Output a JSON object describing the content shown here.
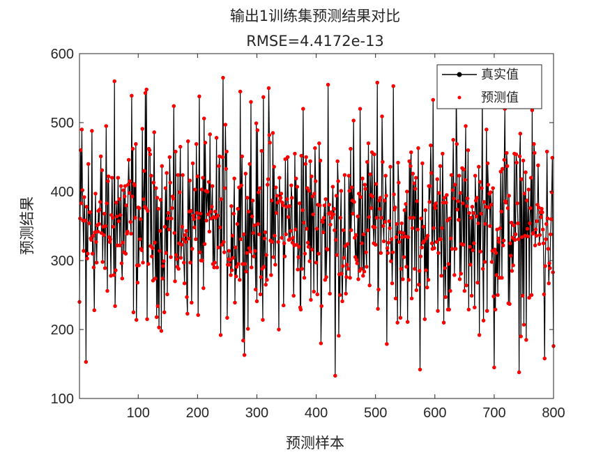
{
  "chart_data": {
    "type": "line",
    "title": "输出1训练集预测结果对比",
    "subtitle": "RMSE=4.4172e-13",
    "xlabel": "预测样本",
    "ylabel": "预测结果",
    "xlim": [
      1,
      800
    ],
    "ylim": [
      100,
      600
    ],
    "xticks": [
      100,
      200,
      300,
      400,
      500,
      600,
      700,
      800
    ],
    "yticks": [
      100,
      200,
      300,
      400,
      500,
      600
    ],
    "grid": false,
    "legend_position": "top-right",
    "n_points": 800,
    "value_range": [
      133,
      565
    ],
    "series": [
      {
        "name": "真实值",
        "style": "line-with-dot-markers",
        "color": "#000000"
      },
      {
        "name": "预测值",
        "style": "dot-markers",
        "color": "#ff0000"
      }
    ],
    "sampled_points": {
      "x": [
        1,
        5,
        12,
        22,
        30,
        45,
        60,
        66,
        89,
        112,
        114,
        134,
        153,
        163,
        203,
        243,
        272,
        290,
        311,
        320,
        338,
        352,
        378,
        405,
        420,
        432,
        474,
        503,
        530,
        575,
        597,
        636,
        680,
        700,
        718,
        742,
        767,
        785,
        800
      ],
      "y": [
        240,
        490,
        153,
        488,
        297,
        350,
        560,
        420,
        539,
        543,
        548,
        375,
        450,
        458,
        538,
        565,
        545,
        530,
        537,
        550,
        420,
        450,
        520,
        470,
        555,
        133,
        520,
        558,
        553,
        142,
        533,
        552,
        535,
        145,
        520,
        138,
        469,
        158,
        176
      ]
    }
  }
}
